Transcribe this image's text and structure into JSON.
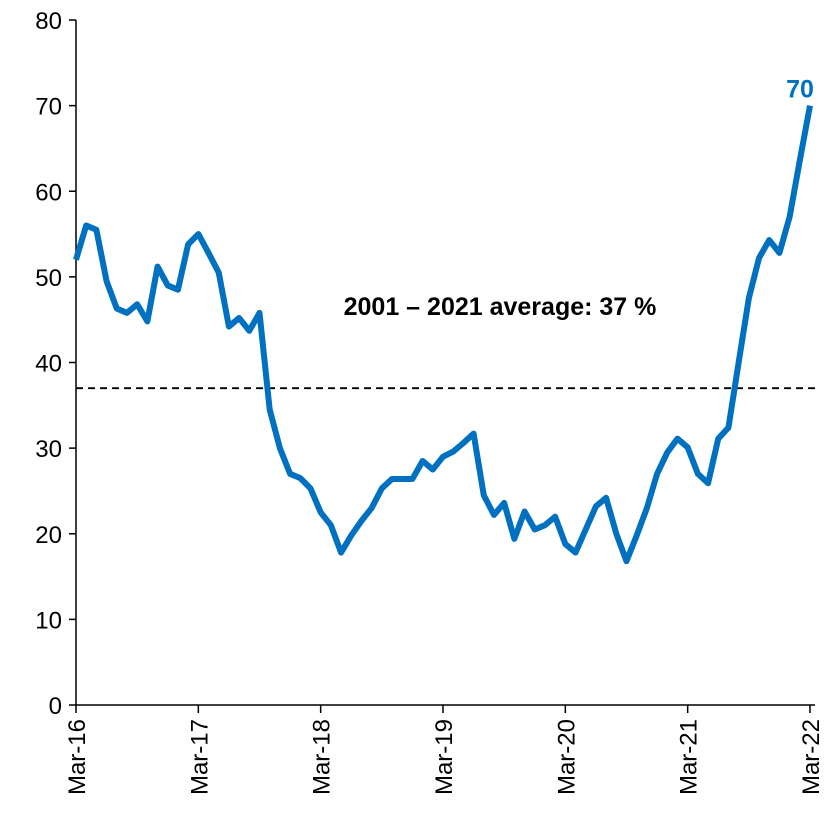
{
  "chart_data": {
    "type": "line",
    "categories": [
      "Mar-16",
      null,
      null,
      null,
      null,
      null,
      null,
      null,
      null,
      null,
      null,
      null,
      "Mar-17",
      null,
      null,
      null,
      null,
      null,
      null,
      null,
      null,
      null,
      null,
      null,
      "Mar-18",
      null,
      null,
      null,
      null,
      null,
      null,
      null,
      null,
      null,
      null,
      null,
      "Mar-19",
      null,
      null,
      null,
      null,
      null,
      null,
      null,
      null,
      null,
      null,
      null,
      "Mar-20",
      null,
      null,
      null,
      null,
      null,
      null,
      null,
      null,
      null,
      null,
      null,
      "Mar-21",
      null,
      null,
      null,
      null,
      null,
      null,
      null,
      null,
      null,
      null,
      null,
      "Mar-22"
    ],
    "values": [
      52,
      56,
      55.5,
      49.5,
      46.3,
      45.8,
      46.8,
      44.8,
      51.2,
      49,
      48.5,
      53.8,
      55,
      52.8,
      50.5,
      44.2,
      45.2,
      43.7,
      45.8,
      34.5,
      30,
      27,
      26.5,
      25.3,
      22.5,
      21,
      17.8,
      19.8,
      21.5,
      23,
      25.3,
      26.4,
      26.4,
      26.4,
      28.5,
      27.5,
      29,
      29.6,
      30.6,
      31.7,
      24.5,
      22.2,
      23.6,
      19.4,
      22.6,
      20.5,
      21,
      22,
      18.8,
      17.8,
      20.5,
      23.2,
      24.2,
      20,
      16.8,
      19.8,
      23,
      27,
      29.5,
      31.1,
      30.1,
      27,
      25.9,
      31.1,
      32.4,
      40,
      47.5,
      52.2,
      54.3,
      52.8,
      57,
      63.6,
      70
    ],
    "color": "#0070c0",
    "average": 37,
    "annotation": "2001 – 2021 average:  37 %",
    "ylim": [
      0,
      80
    ],
    "yticks": [
      0,
      10,
      20,
      30,
      40,
      50,
      60,
      70,
      80
    ]
  }
}
